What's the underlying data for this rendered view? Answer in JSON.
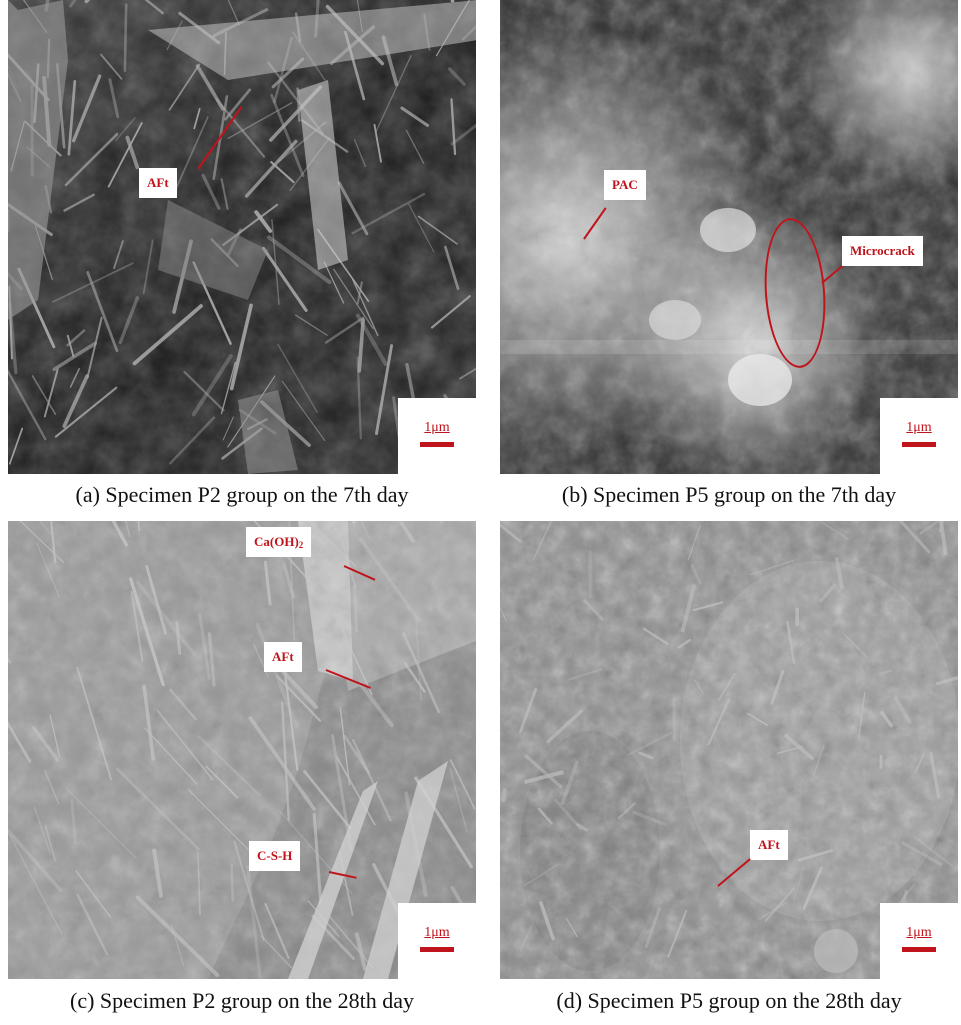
{
  "panels": [
    {
      "id": "a",
      "caption": "(a) Specimen P2 group on the 7th day",
      "scale_label": "1μm",
      "labels": [
        "AFt"
      ]
    },
    {
      "id": "b",
      "caption": "(b) Specimen P5 group on the 7th day",
      "scale_label": "1μm",
      "labels": [
        "PAC",
        "Microcrack"
      ]
    },
    {
      "id": "c",
      "caption": "(c) Specimen P2 group on the 28th day",
      "scale_label": "1μm",
      "labels": [
        "Ca(OH)",
        "2",
        "AFt",
        "C-S-H"
      ]
    },
    {
      "id": "d",
      "caption": "(d) Specimen P5 group on the 28th day",
      "scale_label": "1μm",
      "labels": [
        "AFt"
      ]
    }
  ],
  "colors": {
    "annotation": "#c0141c",
    "label_bg": "#ffffff"
  }
}
